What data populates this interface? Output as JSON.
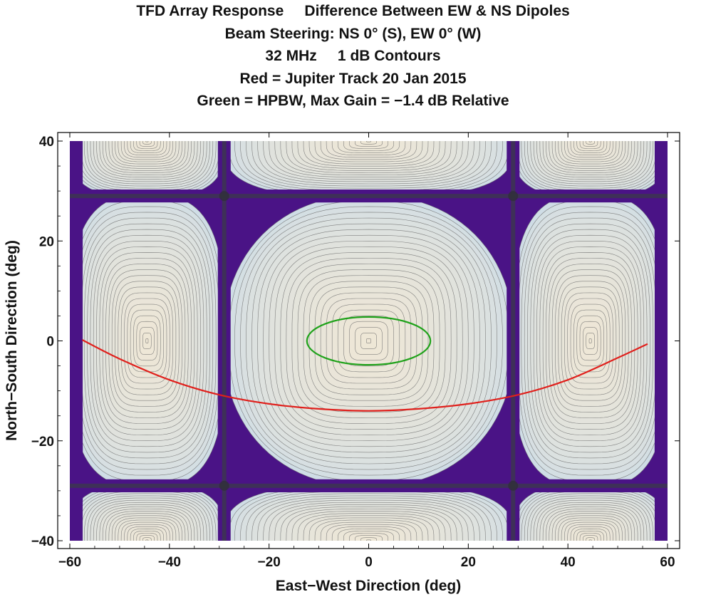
{
  "chart_data": {
    "type": "contour",
    "title_lines": [
      "TFD Array Response     Difference Between EW & NS Dipoles",
      "Beam Steering: NS 0° (S), EW 0° (W)",
      "32 MHz     1 dB Contours",
      "Red = Jupiter Track 20 Jan 2015",
      "Green = HPBW, Max Gain = −1.4 dB Relative"
    ],
    "xlabel": "East−West Direction (deg)",
    "ylabel": "North−South Direction (deg)",
    "xlim": [
      -60,
      60
    ],
    "ylim": [
      -40,
      40
    ],
    "x_ticks": [
      -60,
      -40,
      -20,
      0,
      20,
      40,
      60
    ],
    "x_tick_labels": [
      "−60",
      "−40",
      "−20",
      "0",
      "20",
      "40",
      "60"
    ],
    "y_ticks": [
      -40,
      -20,
      0,
      20,
      40
    ],
    "y_tick_labels": [
      "−40",
      "−20",
      "0",
      "20",
      "40"
    ],
    "contour_interval_db": 1,
    "null_lines": {
      "x": [
        -29,
        29
      ],
      "y": [
        -29,
        29
      ]
    },
    "series": [
      {
        "name": "Jupiter Track 20 Jan 2015",
        "color": "#e0201c",
        "x": [
          -57.5,
          -50,
          -40,
          -30,
          -20,
          -10,
          0,
          10,
          20,
          30,
          40,
          50,
          56
        ],
        "y": [
          0.2,
          -3.6,
          -7.8,
          -10.8,
          -12.6,
          -13.6,
          -14,
          -13.6,
          -12.6,
          -10.8,
          -7.8,
          -3.4,
          -0.6
        ]
      },
      {
        "name": "HPBW",
        "color": "#1fa21a",
        "shape": "ellipse",
        "center": [
          0,
          0
        ],
        "half_width": 12.4,
        "half_height": 4.8
      }
    ],
    "colors": {
      "background": "#4a1386",
      "low": "#cfdde6",
      "high": "#efe7d6",
      "contour_line": "#6e6e6e"
    }
  }
}
